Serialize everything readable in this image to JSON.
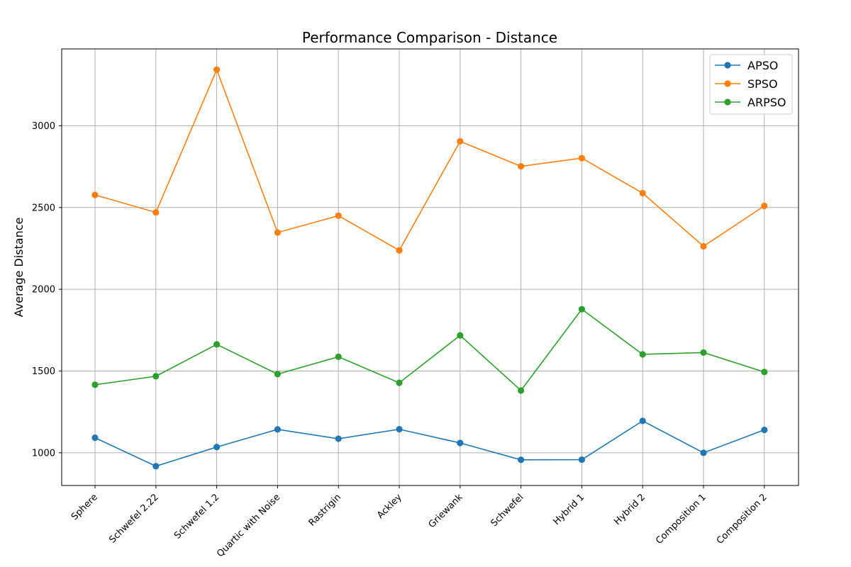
{
  "chart_data": {
    "type": "line",
    "title": "Performance Comparison - Distance",
    "xlabel": "",
    "ylabel": "Average Distance",
    "categories": [
      "Sphere",
      "Schwefel 2.22",
      "Schwefel 1.2",
      "Quartic with Noise",
      "Rastrigin",
      "Ackley",
      "Griewank",
      "Schwefel",
      "Hybrid 1",
      "Hybrid 2",
      "Composition 1",
      "Composition 2"
    ],
    "yticks": [
      1000,
      1500,
      2000,
      2500,
      3000
    ],
    "ylim": [
      800,
      3470
    ],
    "grid": true,
    "legend_position": "top-right",
    "series": [
      {
        "name": "APSO",
        "color": "#1f77b4",
        "values": [
          1092,
          918,
          1035,
          1143,
          1086,
          1144,
          1060,
          957,
          958,
          1195,
          1000,
          1140
        ]
      },
      {
        "name": "SPSO",
        "color": "#ff7f0e",
        "values": [
          2577,
          2470,
          3343,
          2347,
          2450,
          2238,
          2905,
          2752,
          2802,
          2588,
          2263,
          2510
        ]
      },
      {
        "name": "ARPSO",
        "color": "#2ca02c",
        "values": [
          1416,
          1468,
          1663,
          1481,
          1587,
          1428,
          1718,
          1381,
          1878,
          1602,
          1613,
          1494
        ]
      }
    ]
  }
}
